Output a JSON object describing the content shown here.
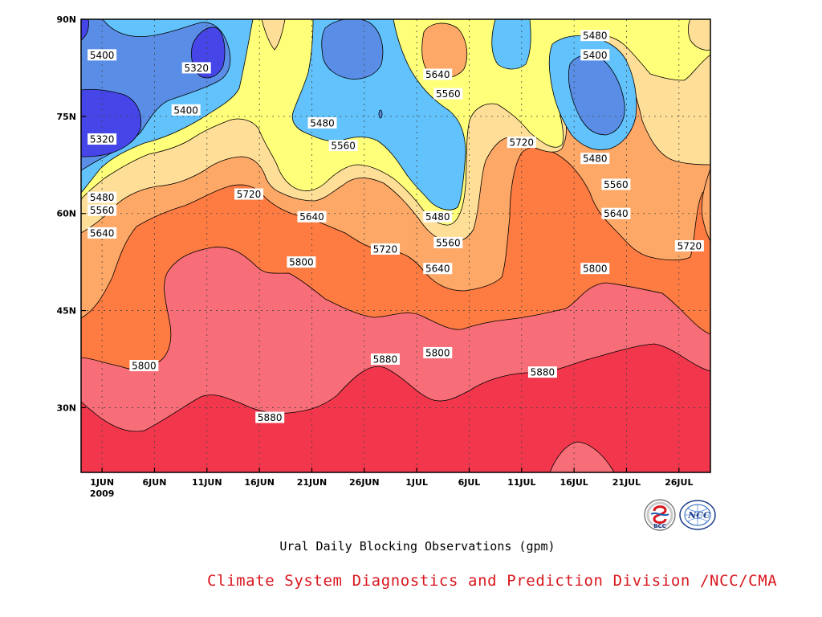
{
  "chart_data": {
    "type": "contour",
    "title": "Ural Daily Blocking Observations (gpm)",
    "x_ticks": [
      {
        "date": "2009-06-01",
        "label": "1JUN",
        "sublabel": "2009"
      },
      {
        "date": "2009-06-06",
        "label": "6JUN"
      },
      {
        "date": "2009-06-11",
        "label": "11JUN"
      },
      {
        "date": "2009-06-16",
        "label": "16JUN"
      },
      {
        "date": "2009-06-21",
        "label": "21JUN"
      },
      {
        "date": "2009-06-26",
        "label": "26JUN"
      },
      {
        "date": "2009-07-01",
        "label": "1JUL"
      },
      {
        "date": "2009-07-06",
        "label": "6JUL"
      },
      {
        "date": "2009-07-11",
        "label": "11JUL"
      },
      {
        "date": "2009-07-16",
        "label": "16JUL"
      },
      {
        "date": "2009-07-21",
        "label": "21JUL"
      },
      {
        "date": "2009-07-26",
        "label": "26JUL"
      }
    ],
    "xlim": [
      "2009-05-30",
      "2009-07-29"
    ],
    "y_ticks": [
      {
        "value": 30,
        "label": "30N"
      },
      {
        "value": 45,
        "label": "45N"
      },
      {
        "value": 60,
        "label": "60N"
      },
      {
        "value": 75,
        "label": "75N"
      },
      {
        "value": 90,
        "label": "90N"
      }
    ],
    "ylim": [
      20,
      90
    ],
    "grid": true,
    "levels": [
      {
        "min": 5240,
        "max": 5320,
        "color": "#4545e8"
      },
      {
        "min": 5320,
        "max": 5400,
        "color": "#5a8ee6"
      },
      {
        "min": 5400,
        "max": 5480,
        "color": "#62c2fb"
      },
      {
        "min": 5480,
        "max": 5560,
        "color": "#ffff79"
      },
      {
        "min": 5560,
        "max": 5640,
        "color": "#ffdf97"
      },
      {
        "min": 5640,
        "max": 5720,
        "color": "#fda867"
      },
      {
        "min": 5720,
        "max": 5800,
        "color": "#fe7b41"
      },
      {
        "min": 5800,
        "max": 5880,
        "color": "#f76e78"
      },
      {
        "min": 5880,
        "max": 5960,
        "color": "#f2374c"
      }
    ],
    "contour_labels": [
      {
        "text": "5400",
        "date": "2009-06-01",
        "lat": 84.5
      },
      {
        "text": "5320",
        "date": "2009-06-10",
        "lat": 82.5
      },
      {
        "text": "5320",
        "date": "2009-06-01",
        "lat": 71.5
      },
      {
        "text": "5400",
        "date": "2009-06-09",
        "lat": 76
      },
      {
        "text": "5480",
        "date": "2009-06-01",
        "lat": 62.5
      },
      {
        "text": "5560",
        "date": "2009-06-01",
        "lat": 60.5
      },
      {
        "text": "5640",
        "date": "2009-06-01",
        "lat": 57
      },
      {
        "text": "5720",
        "date": "2009-06-15",
        "lat": 63
      },
      {
        "text": "5480",
        "date": "2009-06-22",
        "lat": 74
      },
      {
        "text": "5560",
        "date": "2009-06-24",
        "lat": 70.5
      },
      {
        "text": "5640",
        "date": "2009-06-21",
        "lat": 59.5
      },
      {
        "text": "5800",
        "date": "2009-06-20",
        "lat": 52.5
      },
      {
        "text": "5720",
        "date": "2009-06-28",
        "lat": 54.5
      },
      {
        "text": "5800",
        "date": "2009-06-05",
        "lat": 36.5
      },
      {
        "text": "5880",
        "date": "2009-06-17",
        "lat": 28.5
      },
      {
        "text": "5880",
        "date": "2009-06-28",
        "lat": 37.5
      },
      {
        "text": "5800",
        "date": "2009-07-03",
        "lat": 38.5
      },
      {
        "text": "5640",
        "date": "2009-07-03",
        "lat": 81.5
      },
      {
        "text": "5560",
        "date": "2009-07-04",
        "lat": 78.5
      },
      {
        "text": "5480",
        "date": "2009-07-03",
        "lat": 59.5
      },
      {
        "text": "5560",
        "date": "2009-07-04",
        "lat": 55.5
      },
      {
        "text": "5640",
        "date": "2009-07-03",
        "lat": 51.5
      },
      {
        "text": "5720",
        "date": "2009-07-11",
        "lat": 71
      },
      {
        "text": "5880",
        "date": "2009-07-13",
        "lat": 35.5
      },
      {
        "text": "5480",
        "date": "2009-07-18",
        "lat": 87.5
      },
      {
        "text": "5400",
        "date": "2009-07-18",
        "lat": 84.5
      },
      {
        "text": "5480",
        "date": "2009-07-18",
        "lat": 68.5
      },
      {
        "text": "5560",
        "date": "2009-07-20",
        "lat": 64.5
      },
      {
        "text": "5640",
        "date": "2009-07-20",
        "lat": 60
      },
      {
        "text": "5800",
        "date": "2009-07-18",
        "lat": 51.5
      },
      {
        "text": "5720",
        "date": "2009-07-27",
        "lat": 55
      }
    ]
  },
  "footer": "Climate System Diagnostics and Prediction Division /NCC/CMA",
  "logos": {
    "bcc": "BCC",
    "ncc": "NCC"
  }
}
